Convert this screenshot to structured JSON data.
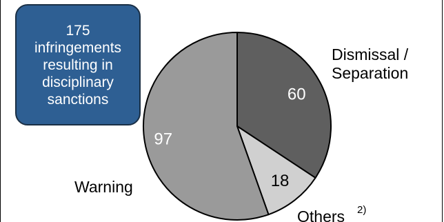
{
  "chart_data": {
    "type": "pie",
    "total_label": "175 infringements resulting in disciplinary sanctions",
    "slices": [
      {
        "label": "Dismissal / Separation",
        "value": 60,
        "color": "#5f5f5f"
      },
      {
        "label": "Others",
        "footnote": "2)",
        "value": 18,
        "color": "#d0d0d0"
      },
      {
        "label": "Warning",
        "value": 97,
        "color": "#9a9a9a"
      }
    ]
  },
  "summary": {
    "text": "175\ninfringements\nresulting in\ndisciplinary\nsanctions",
    "color": "#2e5f93"
  },
  "labels": {
    "dismissal_line1": "Dismissal /",
    "dismissal_line2": "Separation",
    "others": "Others",
    "others_footnote": "2)",
    "warning": "Warning"
  }
}
